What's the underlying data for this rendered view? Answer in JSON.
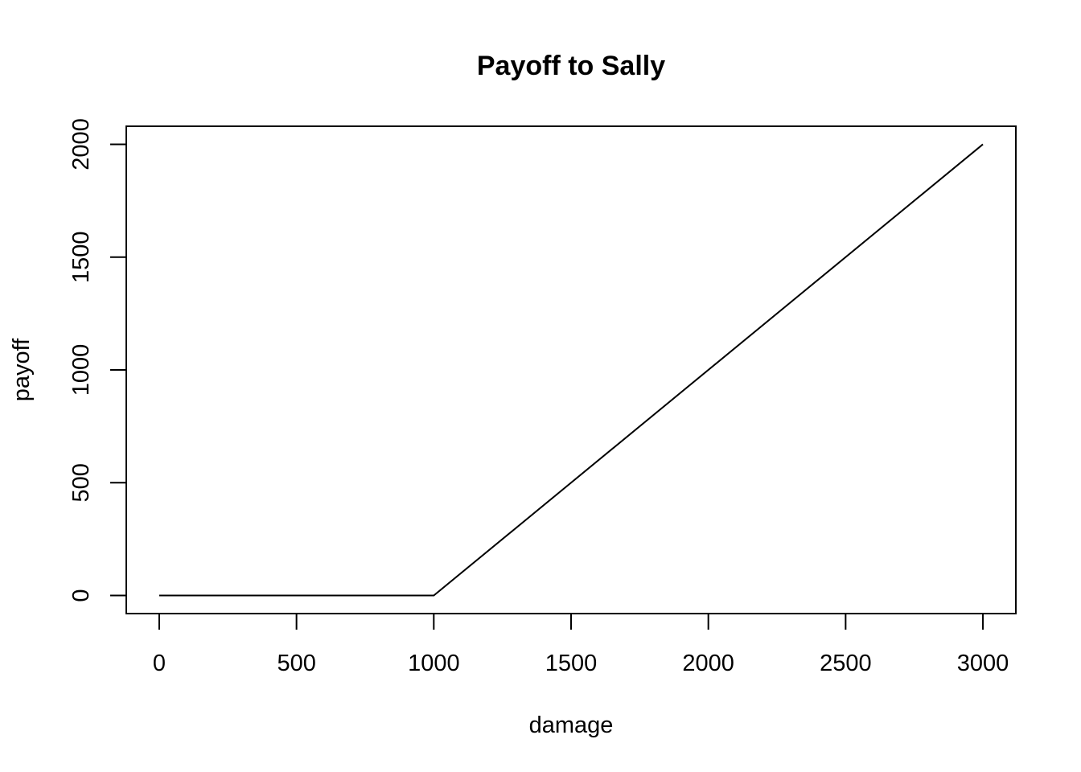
{
  "chart_data": {
    "type": "line",
    "title": "Payoff to Sally",
    "xlabel": "damage",
    "ylabel": "payoff",
    "xlim": [
      -120,
      3120
    ],
    "ylim": [
      -80,
      2080
    ],
    "x_ticks": [
      0,
      500,
      1000,
      1500,
      2000,
      2500,
      3000
    ],
    "y_ticks": [
      0,
      500,
      1000,
      1500,
      2000
    ],
    "grid": false,
    "legend": "none",
    "series": [
      {
        "color": "#000000",
        "x": [
          0,
          1000,
          3000
        ],
        "y": [
          0,
          0,
          2000
        ]
      }
    ]
  }
}
